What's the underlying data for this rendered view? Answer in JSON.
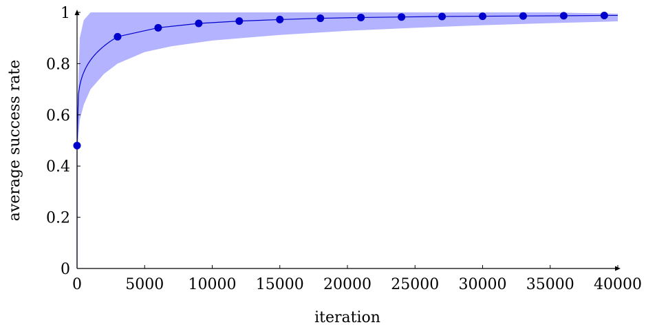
{
  "chart_data": {
    "type": "line",
    "title": "",
    "xlabel": "iteration",
    "ylabel": "average success rate",
    "xlim": [
      0,
      40000
    ],
    "ylim": [
      0,
      1
    ],
    "x_ticks": [
      0,
      5000,
      10000,
      15000,
      20000,
      25000,
      30000,
      35000,
      40000
    ],
    "y_ticks": [
      0,
      0.2,
      0.4,
      0.6,
      0.8,
      1
    ],
    "y_tick_labels": [
      "0",
      "0.2",
      "0.4",
      "0.6",
      "0.8",
      "1"
    ],
    "grid": false,
    "legend": "none",
    "colors": {
      "line": "#0000cc",
      "band": "#b3b3ff"
    },
    "series": [
      {
        "x": [
          0,
          3000,
          6000,
          9000,
          12000,
          15000,
          18000,
          21000,
          24000,
          27000,
          30000,
          33000,
          36000,
          39000
        ],
        "y": [
          0.48,
          0.905,
          0.94,
          0.957,
          0.966,
          0.972,
          0.977,
          0.98,
          0.982,
          0.984,
          0.985,
          0.986,
          0.987,
          0.988
        ]
      }
    ],
    "band": {
      "x": [
        0,
        200,
        500,
        1000,
        2000,
        3000,
        5000,
        7000,
        10000,
        15000,
        20000,
        25000,
        30000,
        35000,
        40000
      ],
      "lower": [
        0.45,
        0.58,
        0.64,
        0.7,
        0.76,
        0.8,
        0.845,
        0.868,
        0.89,
        0.912,
        0.928,
        0.94,
        0.95,
        0.958,
        0.965
      ],
      "upper": [
        0.55,
        0.9,
        0.97,
        1.0,
        1.0,
        1.0,
        1.0,
        1.0,
        1.0,
        1.0,
        1.0,
        1.0,
        1.0,
        1.0,
        0.995
      ]
    }
  }
}
